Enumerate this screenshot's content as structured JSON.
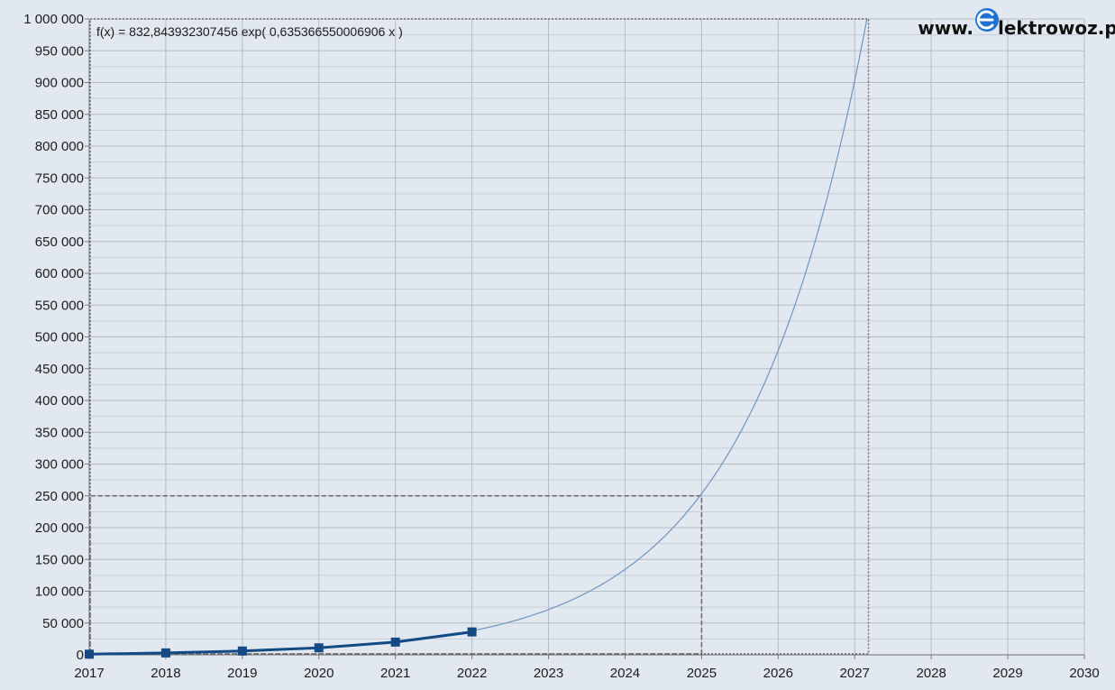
{
  "brand": {
    "prefix": "www.",
    "suffix": "lektrowoz.pl",
    "accent_color": "#1e73d2",
    "icon": "plug-e-icon"
  },
  "chart_data": {
    "type": "line",
    "title": "",
    "xlabel": "",
    "ylabel": "",
    "xlim": [
      2017,
      2030
    ],
    "ylim": [
      0,
      1000000
    ],
    "x_ticks": [
      2017,
      2018,
      2019,
      2020,
      2021,
      2022,
      2023,
      2024,
      2025,
      2026,
      2027,
      2028,
      2029,
      2030
    ],
    "y_ticks": [
      0,
      50000,
      100000,
      150000,
      200000,
      250000,
      300000,
      350000,
      400000,
      450000,
      500000,
      550000,
      600000,
      650000,
      700000,
      750000,
      800000,
      850000,
      900000,
      950000,
      1000000
    ],
    "y_tick_labels": [
      "0",
      "50 000",
      "100 000",
      "150 000",
      "200 000",
      "250 000",
      "300 000",
      "350 000",
      "400 000",
      "450 000",
      "500 000",
      "550 000",
      "600 000",
      "650 000",
      "700 000",
      "750 000",
      "800 000",
      "850 000",
      "900 000",
      "950 000",
      "1 000 000"
    ],
    "grid": true,
    "series": [
      {
        "color": "#134a84",
        "marker": "square",
        "x": [
          2017,
          2018,
          2019,
          2020,
          2021,
          2022
        ],
        "values": [
          1000,
          3000,
          6000,
          11000,
          20000,
          36000
        ]
      }
    ],
    "trendline": {
      "equation_label": "f(x) = 832,843932307456 exp( 0,635366550006906 x )",
      "a": 832.843932307456,
      "b": 0.635366550006906,
      "x_origin": 2016,
      "color": "#6e96c0"
    },
    "annotations": [
      {
        "x": 2025,
        "y": 250000
      },
      {
        "x": 2027.18,
        "y": 1000000
      }
    ]
  }
}
